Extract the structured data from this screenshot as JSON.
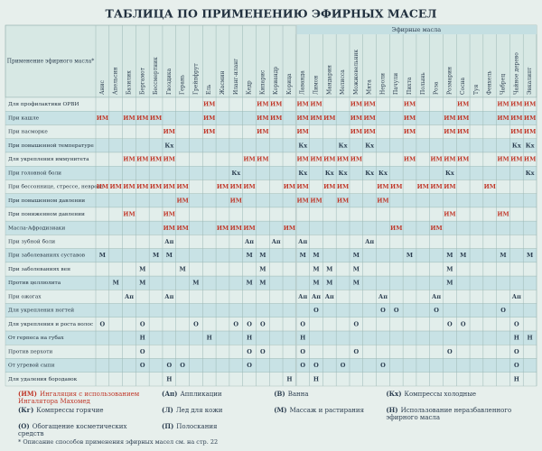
{
  "title": "ТАБЛИЦА ПО ПРИМЕНЕНИЮ ЭФИРНЫХ МАСЕЛ",
  "corner_label": "Применение эфирного масла*",
  "columns_group": "Эфирные масла",
  "columns": [
    "Анис",
    "Апельсин",
    "Базилик",
    "Бергамот",
    "Бессмертник",
    "Гвоздика",
    "Герань",
    "Грейпфрут",
    "Ель",
    "Жасмин",
    "Иланг-иланг",
    "Кедр",
    "Кипарис",
    "Кориандр",
    "Корица",
    "Лаванда",
    "Лимон",
    "Мандарин",
    "Мелисса",
    "Можжевельник",
    "Мята",
    "Нероли",
    "Пачули",
    "Пихта",
    "Полынь",
    "Роза",
    "Розмарин",
    "Сосна",
    "Туя",
    "Фенхель",
    "Чабрец",
    "Чайное дерево",
    "Эвкалипт"
  ],
  "rows": [
    {
      "label": "Для профилактики ОРВИ",
      "cells": [
        null,
        null,
        null,
        null,
        null,
        null,
        null,
        null,
        "ИМ",
        null,
        null,
        null,
        "ИМ",
        "ИМ",
        null,
        "ИМ",
        "ИМ",
        null,
        null,
        "ИМ",
        "ИМ",
        null,
        null,
        "ИМ",
        null,
        null,
        null,
        "ИМ",
        null,
        null,
        "ИМ",
        "ИМ",
        "ИМ"
      ]
    },
    {
      "label": "При кашле",
      "cells": [
        "ИМ",
        null,
        "ИМ",
        "ИМ",
        "ИМ",
        null,
        null,
        null,
        "ИМ",
        null,
        null,
        null,
        "ИМ",
        "ИМ",
        null,
        "ИМ",
        "ИМ",
        "ИМ",
        null,
        "ИМ",
        "ИМ",
        null,
        null,
        "ИМ",
        null,
        null,
        "ИМ",
        "ИМ",
        null,
        null,
        "ИМ",
        "ИМ",
        "ИМ"
      ]
    },
    {
      "label": "При насморке",
      "cells": [
        null,
        null,
        null,
        null,
        null,
        "ИМ",
        null,
        null,
        "ИМ",
        null,
        null,
        null,
        "ИМ",
        null,
        null,
        "ИМ",
        null,
        null,
        null,
        "ИМ",
        "ИМ",
        null,
        null,
        "ИМ",
        null,
        null,
        "ИМ",
        "ИМ",
        null,
        null,
        null,
        "ИМ",
        "ИМ"
      ]
    },
    {
      "label": "При повышенной температуре",
      "cells": [
        null,
        null,
        null,
        null,
        null,
        "Кх",
        null,
        null,
        null,
        null,
        null,
        null,
        null,
        null,
        null,
        "Кх",
        null,
        null,
        "Кх",
        null,
        "Кх",
        null,
        null,
        null,
        null,
        null,
        null,
        null,
        null,
        null,
        null,
        "Кх",
        "Кх"
      ]
    },
    {
      "label": "Для укрепления иммунитета",
      "cells": [
        null,
        null,
        "ИМ",
        "ИМ",
        "ИМ",
        "ИМ",
        null,
        null,
        null,
        null,
        null,
        "ИМ",
        "ИМ",
        null,
        null,
        "ИМ",
        "ИМ",
        "ИМ",
        "ИМ",
        "ИМ",
        null,
        null,
        null,
        "ИМ",
        null,
        "ИМ",
        "ИМ",
        "ИМ",
        null,
        null,
        "ИМ",
        "ИМ",
        "ИМ"
      ]
    },
    {
      "label": "При головной боли",
      "cells": [
        null,
        null,
        null,
        null,
        null,
        null,
        null,
        null,
        null,
        null,
        "Кх",
        null,
        null,
        null,
        null,
        "Кх",
        null,
        "Кх",
        "Кх",
        null,
        "Кх",
        "Кх",
        null,
        null,
        null,
        null,
        "Кх",
        null,
        null,
        null,
        null,
        null,
        "Кх"
      ]
    },
    {
      "label": "При бессоннице, стрессе, неврозе",
      "cells": [
        "ИМ",
        "ИМ",
        "ИМ",
        "ИМ",
        "ИМ",
        "ИМ",
        "ИМ",
        null,
        null,
        "ИМ",
        "ИМ",
        "ИМ",
        null,
        null,
        "ИМ",
        "ИМ",
        null,
        "ИМ",
        "ИМ",
        null,
        null,
        "ИМ",
        "ИМ",
        null,
        "ИМ",
        "ИМ",
        "ИМ",
        null,
        null,
        "ИМ",
        null,
        null,
        null
      ]
    },
    {
      "label": "При повышенном давлении",
      "cells": [
        null,
        null,
        null,
        null,
        null,
        null,
        "ИМ",
        null,
        null,
        null,
        "ИМ",
        null,
        null,
        null,
        null,
        "ИМ",
        "ИМ",
        null,
        "ИМ",
        null,
        null,
        "ИМ",
        null,
        null,
        null,
        null,
        null,
        null,
        null,
        null,
        null,
        null,
        null
      ]
    },
    {
      "label": "При пониженном давлении",
      "cells": [
        null,
        null,
        "ИМ",
        null,
        null,
        "ИМ",
        null,
        null,
        null,
        null,
        null,
        null,
        null,
        null,
        null,
        null,
        null,
        null,
        null,
        null,
        null,
        null,
        null,
        null,
        null,
        null,
        "ИМ",
        null,
        null,
        null,
        "ИМ",
        null,
        null
      ]
    },
    {
      "label": "Масла-Афродизиаки",
      "cells": [
        null,
        null,
        null,
        null,
        null,
        "ИМ",
        "ИМ",
        null,
        null,
        "ИМ",
        "ИМ",
        "ИМ",
        null,
        null,
        "ИМ",
        null,
        null,
        null,
        null,
        null,
        null,
        null,
        "ИМ",
        null,
        null,
        "ИМ",
        null,
        null,
        null,
        null,
        null,
        null,
        null
      ]
    },
    {
      "label": "При зубной боли",
      "cells": [
        null,
        null,
        null,
        null,
        null,
        "Ап",
        null,
        null,
        null,
        null,
        null,
        "Ап",
        null,
        "Ап",
        null,
        "Ап",
        null,
        null,
        null,
        null,
        "Ап",
        null,
        null,
        null,
        null,
        null,
        null,
        null,
        null,
        null,
        null,
        null,
        null
      ]
    },
    {
      "label": "При заболеваниях суставов",
      "cells": [
        "М",
        null,
        null,
        null,
        "М",
        "М",
        null,
        null,
        null,
        null,
        null,
        "М",
        "М",
        null,
        null,
        "М",
        "М",
        null,
        null,
        "М",
        null,
        null,
        null,
        "М",
        null,
        null,
        "М",
        "М",
        null,
        null,
        "М",
        null,
        "М"
      ]
    },
    {
      "label": "При заболеваниях вен",
      "cells": [
        null,
        null,
        null,
        "М",
        null,
        null,
        "М",
        null,
        null,
        null,
        null,
        null,
        "М",
        null,
        null,
        null,
        "М",
        "М",
        null,
        "М",
        null,
        null,
        null,
        null,
        null,
        null,
        "М",
        null,
        null,
        null,
        null,
        null,
        null
      ]
    },
    {
      "label": "Против целлюлита",
      "cells": [
        null,
        "М",
        null,
        "М",
        null,
        null,
        null,
        "М",
        null,
        null,
        null,
        "М",
        "М",
        null,
        null,
        null,
        "М",
        "М",
        null,
        "М",
        null,
        null,
        null,
        null,
        null,
        null,
        "М",
        null,
        null,
        null,
        null,
        null,
        null
      ]
    },
    {
      "label": "При ожогах",
      "cells": [
        null,
        null,
        "Ап",
        null,
        null,
        "Ап",
        null,
        null,
        null,
        null,
        null,
        null,
        null,
        null,
        null,
        "Ап",
        "Ап",
        "Ап",
        null,
        null,
        null,
        "Ап",
        null,
        null,
        null,
        "Ап",
        null,
        null,
        null,
        null,
        null,
        "Ап",
        null
      ]
    },
    {
      "label": "Для укрепления ногтей",
      "cells": [
        null,
        null,
        null,
        null,
        null,
        null,
        null,
        null,
        null,
        null,
        null,
        null,
        null,
        null,
        null,
        null,
        "О",
        null,
        null,
        null,
        null,
        "О",
        "О",
        null,
        null,
        "О",
        null,
        null,
        null,
        null,
        "О",
        null,
        null
      ]
    },
    {
      "label": "Для укрепления и роста волос",
      "cells": [
        "О",
        null,
        null,
        "О",
        null,
        null,
        null,
        "О",
        null,
        null,
        "О",
        "О",
        "О",
        null,
        null,
        "О",
        null,
        null,
        null,
        "О",
        null,
        null,
        null,
        null,
        null,
        null,
        "О",
        "О",
        null,
        null,
        null,
        "О",
        null
      ]
    },
    {
      "label": "От герпеса на губах",
      "cells": [
        null,
        null,
        null,
        "Н",
        null,
        null,
        null,
        null,
        "Н",
        null,
        null,
        "Н",
        null,
        null,
        null,
        "Н",
        null,
        null,
        null,
        null,
        null,
        null,
        null,
        null,
        null,
        null,
        null,
        null,
        null,
        null,
        null,
        "Н",
        "Н"
      ]
    },
    {
      "label": "Против перхоти",
      "cells": [
        null,
        null,
        null,
        "О",
        null,
        null,
        null,
        null,
        null,
        null,
        null,
        "О",
        "О",
        null,
        null,
        "О",
        null,
        null,
        null,
        "О",
        null,
        null,
        null,
        null,
        null,
        null,
        "О",
        null,
        null,
        null,
        null,
        "О",
        null
      ]
    },
    {
      "label": "От угревой сыпи",
      "cells": [
        null,
        null,
        null,
        "О",
        null,
        "О",
        "О",
        null,
        null,
        null,
        null,
        "О",
        null,
        null,
        null,
        "О",
        "О",
        null,
        "О",
        null,
        null,
        "О",
        null,
        null,
        null,
        null,
        null,
        null,
        null,
        null,
        null,
        "О",
        null
      ]
    },
    {
      "label": "Для удаления бородавок",
      "cells": [
        null,
        null,
        null,
        null,
        null,
        "Н",
        null,
        null,
        null,
        null,
        null,
        null,
        null,
        null,
        "Н",
        null,
        "Н",
        null,
        null,
        null,
        null,
        null,
        null,
        null,
        null,
        null,
        null,
        null,
        null,
        null,
        null,
        "Н",
        null
      ]
    }
  ],
  "legend": [
    {
      "code": "(ИМ)",
      "text": "Ингаляция с использованием Ингалятора Махомед",
      "color": "#c0392b"
    },
    {
      "code": "(Ап)",
      "text": "Аппликации",
      "color": "#2c3e50"
    },
    {
      "code": "(В)",
      "text": "Ванна",
      "color": "#2c3e50"
    },
    {
      "code": "(Кх)",
      "text": "Компрессы холодные",
      "color": "#2c3e50"
    },
    {
      "code": "(Кг)",
      "text": "Компрессы горячие",
      "color": "#2c3e50"
    },
    {
      "code": "(Л)",
      "text": "Лед для кожи",
      "color": "#2c3e50"
    },
    {
      "code": "(М)",
      "text": "Массаж и растирания",
      "color": "#2c3e50"
    },
    {
      "code": "(Н)",
      "text": "Использование неразбавленного эфирного масла",
      "color": "#2c3e50"
    },
    {
      "code": "(О)",
      "text": "Обогащение косметических средств",
      "color": "#2c3e50"
    },
    {
      "code": "(П)",
      "text": "Полоскания",
      "color": "#2c3e50"
    }
  ],
  "footnote": "* Описание способов применения эфирных масел см. на стр. 22"
}
